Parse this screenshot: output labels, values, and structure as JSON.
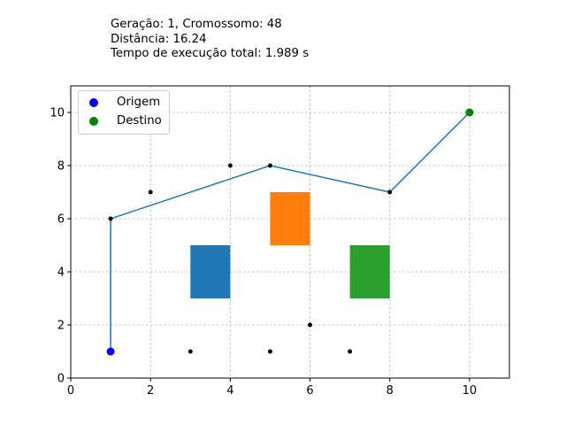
{
  "info": {
    "line1": "Geração: 1, Cromossomo: 48",
    "line2": "Distância: 16.24",
    "line3": "Tempo de execução total: 1.989 s"
  },
  "legend": {
    "origem": "Origem",
    "destino": "Destino"
  },
  "chart_data": {
    "type": "scatter",
    "xlim": [
      0,
      11
    ],
    "ylim": [
      0,
      11
    ],
    "xticks": [
      0,
      2,
      4,
      6,
      8,
      10
    ],
    "yticks": [
      0,
      2,
      4,
      6,
      8,
      10
    ],
    "grid": true,
    "legend_position": "top-left",
    "origin": {
      "label": "Origem",
      "x": 1,
      "y": 1,
      "color": "#0000ff"
    },
    "destination": {
      "label": "Destino",
      "x": 10,
      "y": 10,
      "color": "#008000"
    },
    "path": {
      "color": "#1f77b4",
      "points": [
        [
          1,
          1
        ],
        [
          1,
          6
        ],
        [
          5,
          8
        ],
        [
          8,
          7
        ],
        [
          10,
          10
        ]
      ]
    },
    "waypoints": [
      [
        1,
        6
      ],
      [
        2,
        7
      ],
      [
        4,
        8
      ],
      [
        5,
        8
      ],
      [
        8,
        7
      ],
      [
        3,
        1
      ],
      [
        5,
        1
      ],
      [
        6,
        2
      ],
      [
        7,
        1
      ]
    ],
    "obstacles": [
      {
        "x": 3,
        "y": 3,
        "width": 1,
        "height": 2,
        "color": "#1f77b4"
      },
      {
        "x": 5,
        "y": 5,
        "width": 1,
        "height": 2,
        "color": "#ff7f0e"
      },
      {
        "x": 7,
        "y": 3,
        "width": 1,
        "height": 2,
        "color": "#2ca02c"
      }
    ]
  }
}
